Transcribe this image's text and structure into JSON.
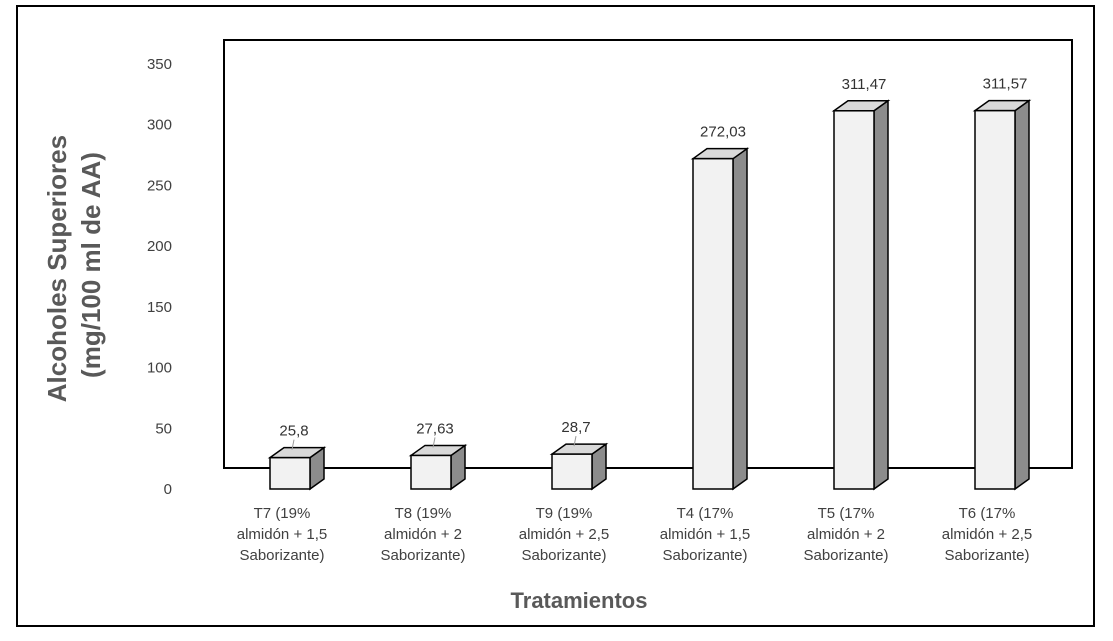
{
  "chart_data": {
    "type": "bar",
    "categories": [
      [
        "T7 (19%",
        "almidón + 1,5",
        "Saborizante)"
      ],
      [
        "T8 (19%",
        "almidón + 2",
        "Saborizante)"
      ],
      [
        "T9 (19%",
        "almidón + 2,5",
        "Saborizante)"
      ],
      [
        "T4 (17%",
        "almidón + 1,5",
        "Saborizante)"
      ],
      [
        "T5 (17%",
        "almidón + 2",
        "Saborizante)"
      ],
      [
        "T6 (17%",
        "almidón + 2,5",
        "Saborizante)"
      ]
    ],
    "values": [
      25.8,
      27.63,
      28.7,
      272.03,
      311.47,
      311.57
    ],
    "data_labels": [
      "25,8",
      "27,63",
      "28,7",
      "272,03",
      "311,47",
      "311,57"
    ],
    "xlabel": "Tratamientos",
    "ylabel": [
      "Alcoholes Superiores",
      "(mg/100 ml de AA)"
    ],
    "ylim": [
      0,
      350
    ],
    "yticks": [
      0,
      50,
      100,
      150,
      200,
      250,
      300,
      350
    ],
    "grid": false,
    "colors": {
      "bar_front": "#f2f2f2",
      "bar_side": "#8c8c8c",
      "bar_top": "#d9d9d9",
      "outline": "#000000"
    }
  }
}
